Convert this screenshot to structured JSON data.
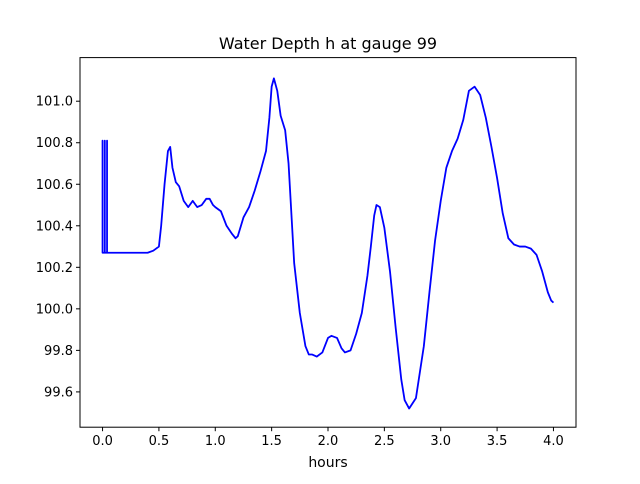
{
  "chart_data": {
    "type": "line",
    "title": "Water Depth h at gauge 99",
    "xlabel": "hours",
    "ylabel": "",
    "xlim": [
      -0.2,
      4.2
    ],
    "ylim": [
      99.43,
      101.21
    ],
    "xticks": [
      0.0,
      0.5,
      1.0,
      1.5,
      2.0,
      2.5,
      3.0,
      3.5,
      4.0
    ],
    "xtick_labels": [
      "0.0",
      "0.5",
      "1.0",
      "1.5",
      "2.0",
      "2.5",
      "3.0",
      "3.5",
      "4.0"
    ],
    "yticks": [
      99.6,
      99.8,
      100.0,
      100.2,
      100.4,
      100.6,
      100.8,
      101.0
    ],
    "ytick_labels": [
      "99.6",
      "99.8",
      "100.0",
      "100.2",
      "100.4",
      "100.6",
      "100.8",
      "101.0"
    ],
    "grid": false,
    "series": [
      {
        "color": "#0000ff",
        "x": [
          0.0,
          0.0,
          0.0,
          0.02,
          0.02,
          0.02,
          0.04,
          0.04,
          0.04,
          0.1,
          0.2,
          0.3,
          0.4,
          0.45,
          0.5,
          0.52,
          0.55,
          0.58,
          0.6,
          0.62,
          0.65,
          0.68,
          0.72,
          0.76,
          0.8,
          0.84,
          0.88,
          0.92,
          0.95,
          0.98,
          1.0,
          1.05,
          1.1,
          1.15,
          1.18,
          1.2,
          1.25,
          1.3,
          1.35,
          1.4,
          1.45,
          1.48,
          1.5,
          1.52,
          1.55,
          1.58,
          1.62,
          1.65,
          1.7,
          1.75,
          1.8,
          1.83,
          1.86,
          1.9,
          1.95,
          2.0,
          2.03,
          2.08,
          2.12,
          2.15,
          2.2,
          2.25,
          2.3,
          2.35,
          2.38,
          2.41,
          2.43,
          2.46,
          2.5,
          2.55,
          2.6,
          2.65,
          2.68,
          2.72,
          2.78,
          2.85,
          2.9,
          2.95,
          3.0,
          3.05,
          3.1,
          3.15,
          3.2,
          3.25,
          3.3,
          3.35,
          3.4,
          3.45,
          3.5,
          3.55,
          3.6,
          3.65,
          3.7,
          3.75,
          3.8,
          3.85,
          3.9,
          3.95,
          3.98,
          4.0
        ],
        "y": [
          100.27,
          100.81,
          100.27,
          100.27,
          100.81,
          100.27,
          100.27,
          100.81,
          100.27,
          100.27,
          100.27,
          100.27,
          100.27,
          100.28,
          100.3,
          100.4,
          100.6,
          100.76,
          100.78,
          100.68,
          100.61,
          100.59,
          100.52,
          100.49,
          100.52,
          100.49,
          100.5,
          100.53,
          100.53,
          100.5,
          100.49,
          100.47,
          100.4,
          100.36,
          100.34,
          100.35,
          100.44,
          100.49,
          100.57,
          100.66,
          100.76,
          100.92,
          101.07,
          101.11,
          101.05,
          100.93,
          100.86,
          100.7,
          100.22,
          99.98,
          99.82,
          99.78,
          99.78,
          99.77,
          99.79,
          99.86,
          99.87,
          99.86,
          99.81,
          99.79,
          99.8,
          99.88,
          99.98,
          100.16,
          100.3,
          100.45,
          100.5,
          100.49,
          100.39,
          100.18,
          99.91,
          99.66,
          99.56,
          99.52,
          99.57,
          99.82,
          100.08,
          100.33,
          100.52,
          100.68,
          100.76,
          100.82,
          100.91,
          101.05,
          101.07,
          101.03,
          100.92,
          100.78,
          100.63,
          100.46,
          100.34,
          100.31,
          100.3,
          100.3,
          100.29,
          100.26,
          100.18,
          100.08,
          100.04,
          100.03
        ]
      }
    ]
  }
}
